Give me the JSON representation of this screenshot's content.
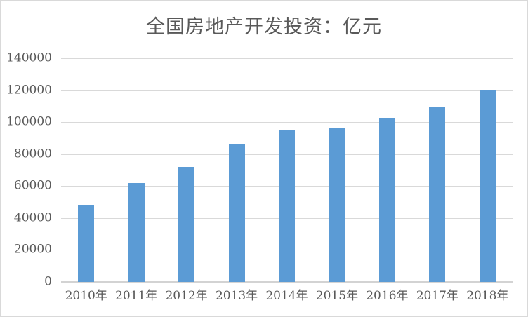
{
  "chart_data": {
    "type": "bar",
    "title": "全国房地产开发投资：亿元",
    "categories": [
      "2010年",
      "2011年",
      "2012年",
      "2013年",
      "2014年",
      "2015年",
      "2016年",
      "2017年",
      "2018年"
    ],
    "values": [
      48267,
      61740,
      71804,
      86013,
      95036,
      95979,
      102581,
      109799,
      120264
    ],
    "xlabel": "",
    "ylabel": "",
    "ylim": [
      0,
      140000
    ],
    "ytick_step": 20000,
    "yticks": [
      0,
      20000,
      40000,
      60000,
      80000,
      100000,
      120000,
      140000
    ],
    "grid": true,
    "legend": "none",
    "colors": {
      "bar_fill": "#5b9bd5",
      "gridline": "#d9d9d9",
      "axis_line": "#d3d3d3",
      "label_text": "#595959",
      "title_text": "#595959",
      "background": "#ffffff",
      "frame_border": "#d9d9d9"
    }
  }
}
